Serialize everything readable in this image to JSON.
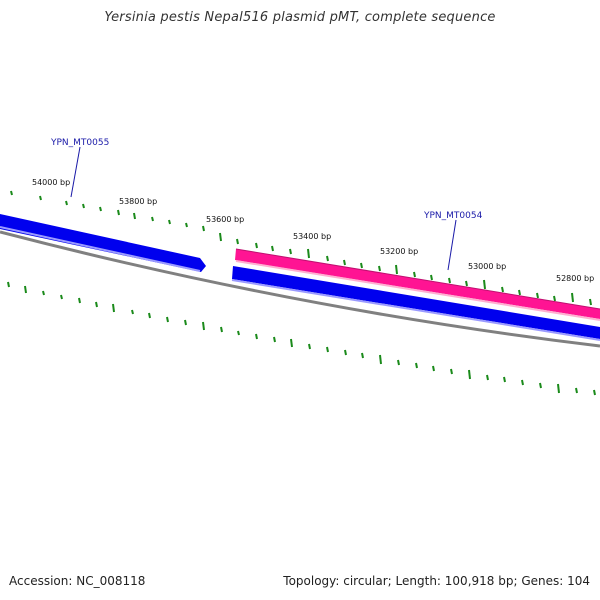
{
  "title": "Yersinia pestis Nepal516 plasmid pMT, complete sequence",
  "footer": {
    "accession": "Accession: NC_008118",
    "summary": "Topology: circular; Length: 100,918 bp; Genes: 104"
  },
  "ticks": [
    {
      "label": "54000 bp"
    },
    {
      "label": "53800 bp"
    },
    {
      "label": "53600 bp"
    },
    {
      "label": "53400 bp"
    },
    {
      "label": "53200 bp"
    },
    {
      "label": "53000 bp"
    },
    {
      "label": "52800 bp"
    }
  ],
  "genes": [
    {
      "label": "YPN_MT0055",
      "strand": "minus",
      "color": "#0000ee"
    },
    {
      "label": "YPN_MT0054",
      "strand": "plus",
      "color": "#ff1493"
    }
  ],
  "colors": {
    "backbone": "#808080",
    "tick": "#1a8a1a",
    "minus_gene": "#0000ee",
    "plus_gene": "#ff1493"
  }
}
